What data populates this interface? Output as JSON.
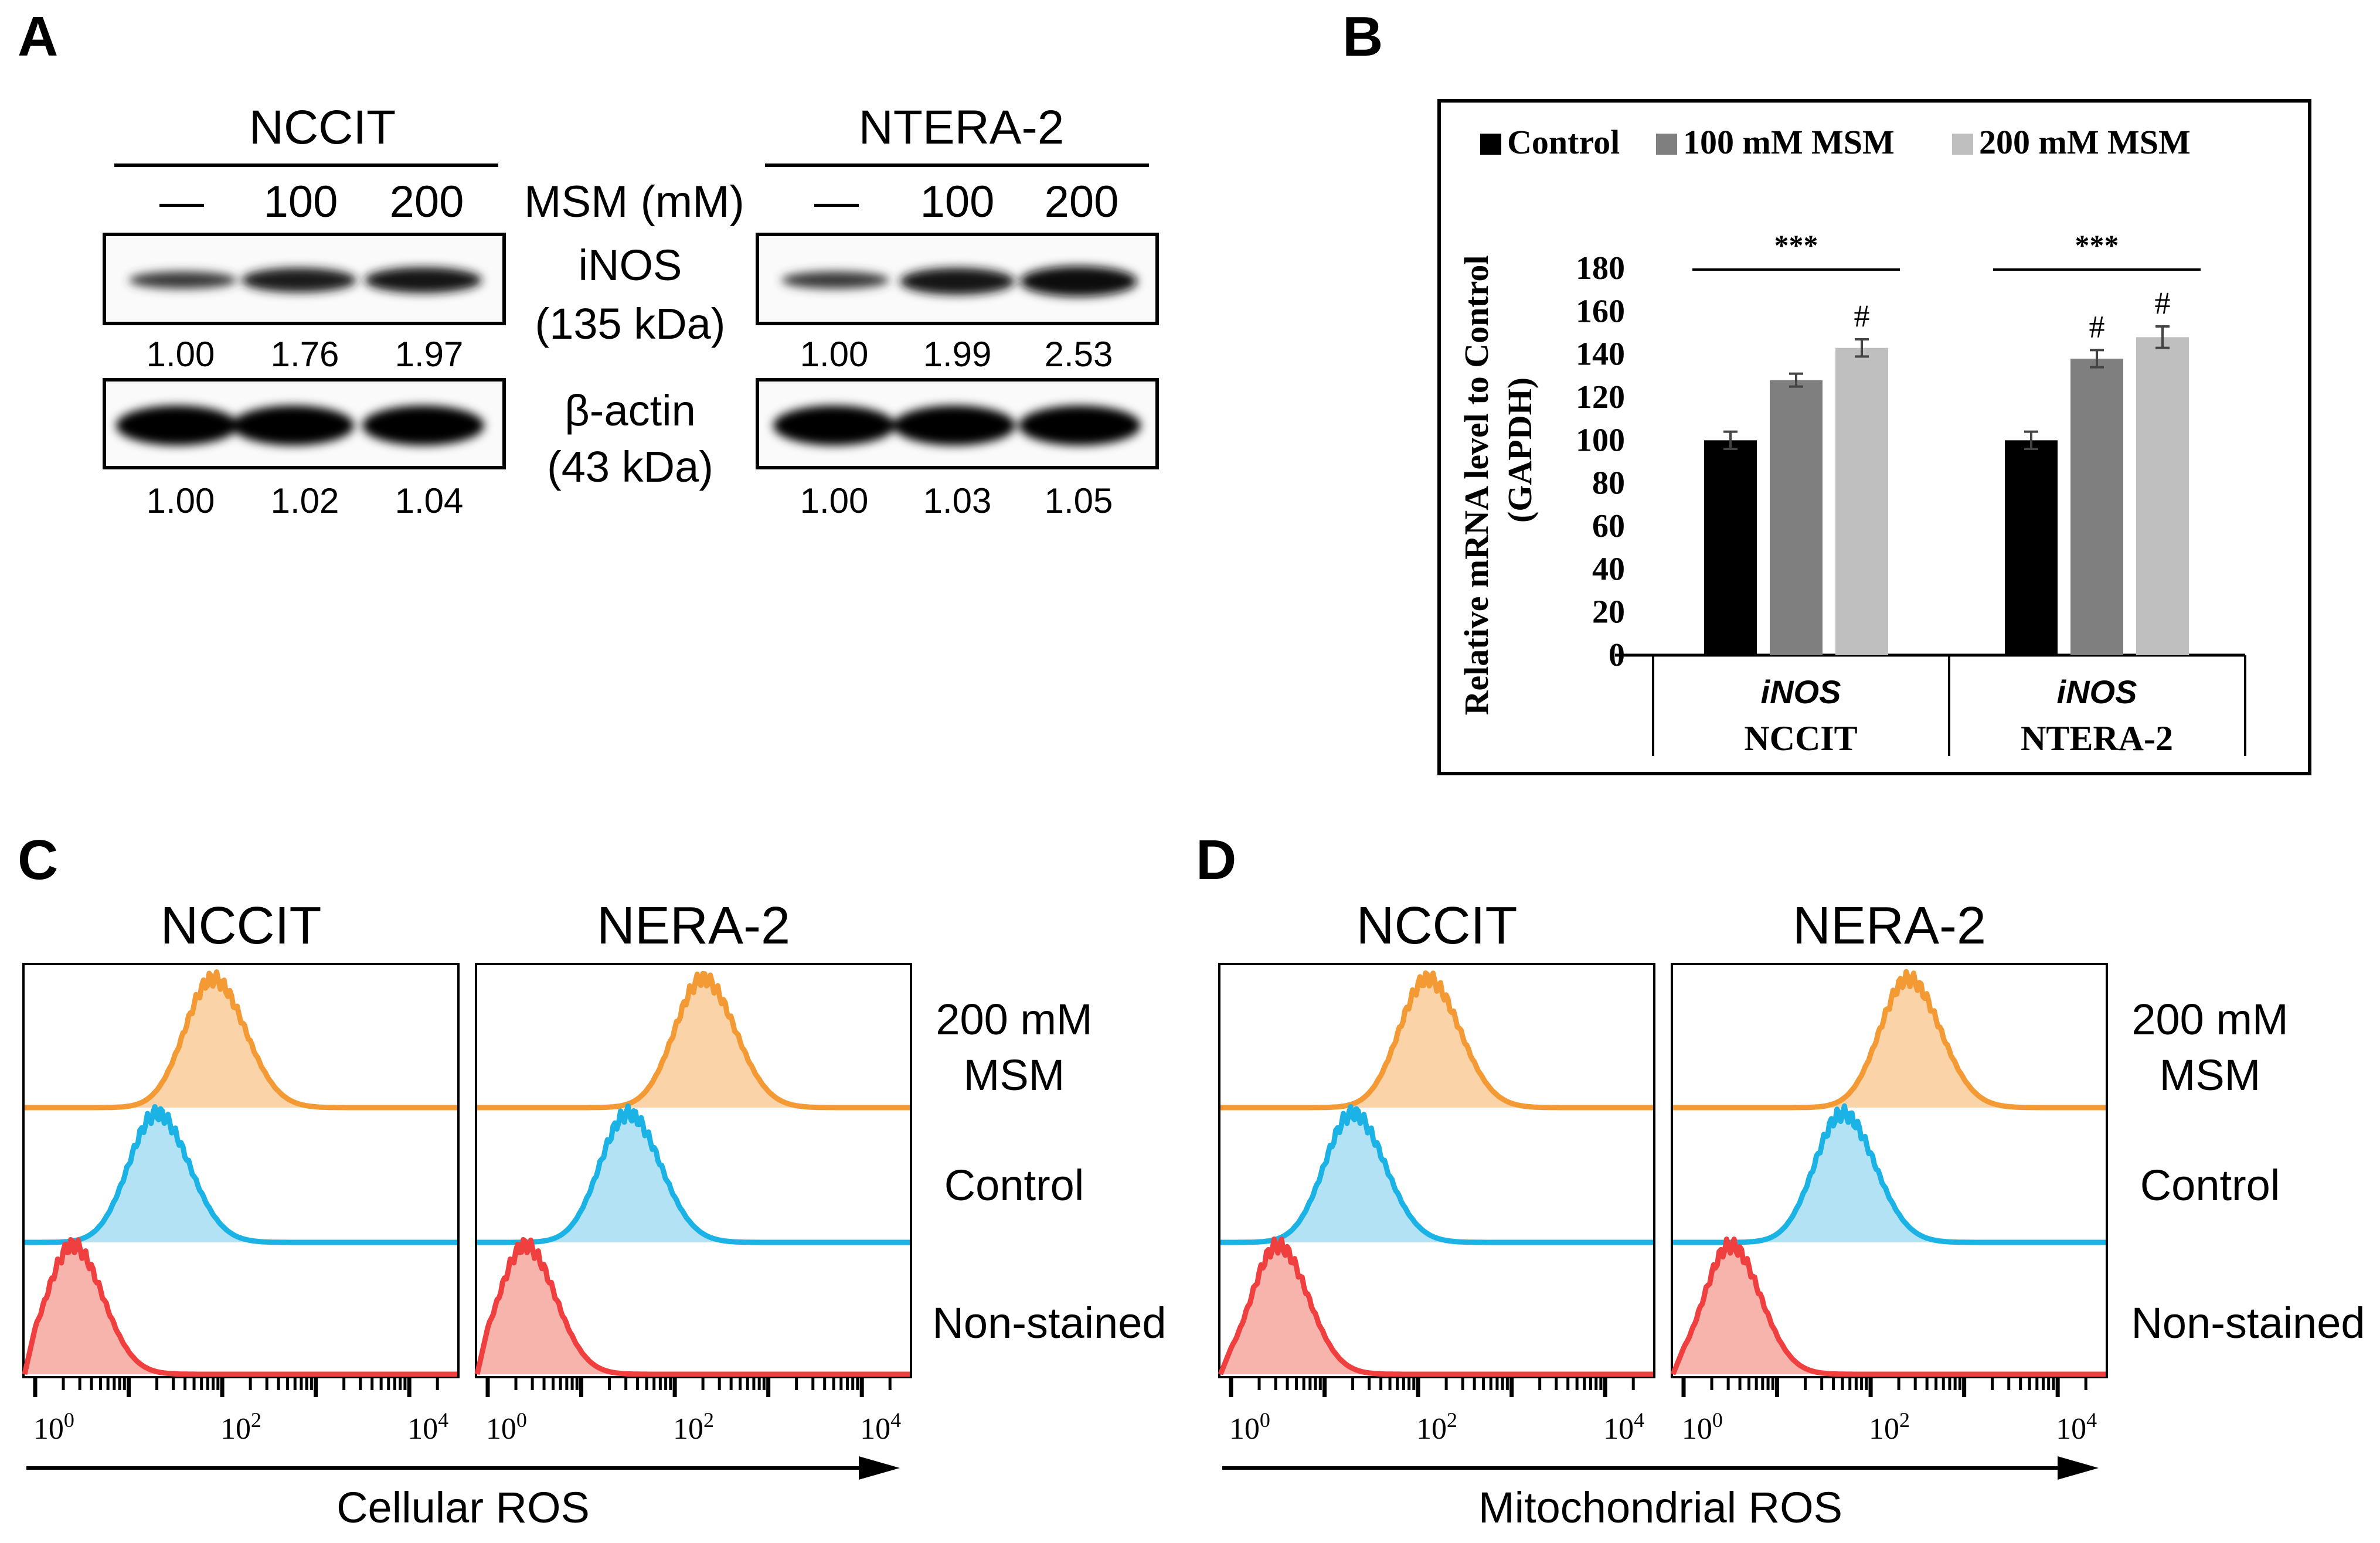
{
  "panel_labels": {
    "a": "A",
    "b": "B",
    "c": "C",
    "d": "D"
  },
  "western": {
    "cell_lines": [
      "NCCIT",
      "NTERA-2"
    ],
    "treatment_label": "MSM (mM)",
    "doses": [
      "—",
      "100",
      "200"
    ],
    "protein1": {
      "name": "iNOS",
      "size": "(135 kDa)"
    },
    "protein2": {
      "name": "β-actin",
      "size": "(43 kDa)"
    },
    "quant": {
      "nccit_inos": [
        "1.00",
        "1.76",
        "1.97"
      ],
      "ntera_inos": [
        "1.00",
        "1.99",
        "2.53"
      ],
      "nccit_actin": [
        "1.00",
        "1.02",
        "1.04"
      ],
      "ntera_actin": [
        "1.00",
        "1.03",
        "1.05"
      ]
    }
  },
  "chart_data": [
    {
      "type": "bar",
      "panel": "B",
      "legend": [
        "Control",
        "100 mM MSM",
        "200 mM MSM"
      ],
      "legend_colors": [
        "#000000",
        "#7f7f7f",
        "#bfbfbf"
      ],
      "groups": [
        {
          "gene": "iNOS",
          "cell": "NCCIT",
          "values": [
            100,
            128,
            143
          ],
          "errors": [
            4,
            3,
            4
          ],
          "marks": [
            "",
            "",
            "#"
          ],
          "sig": "***"
        },
        {
          "gene": "iNOS",
          "cell": "NTERA-2",
          "values": [
            100,
            138,
            148
          ],
          "errors": [
            4,
            4,
            5
          ],
          "marks": [
            "",
            "#",
            "#"
          ],
          "sig": "***"
        }
      ],
      "ylabel": "Relative mRNA level to Control",
      "ylabel2": "(GAPDH)",
      "ylim": [
        0,
        180
      ],
      "yticks": [
        0,
        20,
        40,
        60,
        80,
        100,
        120,
        140,
        160,
        180
      ]
    },
    {
      "type": "area",
      "panel": "C",
      "xlabel": "Cellular ROS",
      "x_scale": "log",
      "x_ticks": [
        "10",
        "10",
        "10"
      ],
      "x_tick_exponents": [
        "0",
        "2",
        "4"
      ],
      "columns": [
        "NCCIT",
        "NERA-2"
      ],
      "rows": [
        {
          "name": "200 mM MSM",
          "label_lines": [
            "200 mM",
            "MSM"
          ],
          "color": "#f39a35",
          "fill": "#fbd3a9",
          "peak_log10": [
            1.7,
            2.1
          ]
        },
        {
          "name": "Control",
          "label_lines": [
            "Control"
          ],
          "color": "#1bb3e6",
          "fill": "#b3e2f5",
          "peak_log10": [
            1.1,
            1.3
          ]
        },
        {
          "name": "Non-stained",
          "label_lines": [
            "Non-stained"
          ],
          "color": "#ef3f3f",
          "fill": "#f6b4ac",
          "peak_log10": [
            0.2,
            0.2
          ]
        }
      ]
    },
    {
      "type": "area",
      "panel": "D",
      "xlabel": "Mitochondrial ROS",
      "x_scale": "log",
      "x_ticks": [
        "10",
        "10",
        "10"
      ],
      "x_tick_exponents": [
        "0",
        "2",
        "4"
      ],
      "columns": [
        "NCCIT",
        "NERA-2"
      ],
      "rows": [
        {
          "name": "200 mM MSM",
          "label_lines": [
            "200 mM",
            "MSM"
          ],
          "color": "#f39a35",
          "fill": "#fbd3a9",
          "peak_log10": [
            1.9,
            2.2
          ]
        },
        {
          "name": "Control",
          "label_lines": [
            "Control"
          ],
          "color": "#1bb3e6",
          "fill": "#b3e2f5",
          "peak_log10": [
            1.1,
            1.5
          ]
        },
        {
          "name": "Non-stained",
          "label_lines": [
            "Non-stained"
          ],
          "color": "#ef3f3f",
          "fill": "#f6b4ac",
          "peak_log10": [
            0.3,
            0.3
          ]
        }
      ]
    }
  ]
}
